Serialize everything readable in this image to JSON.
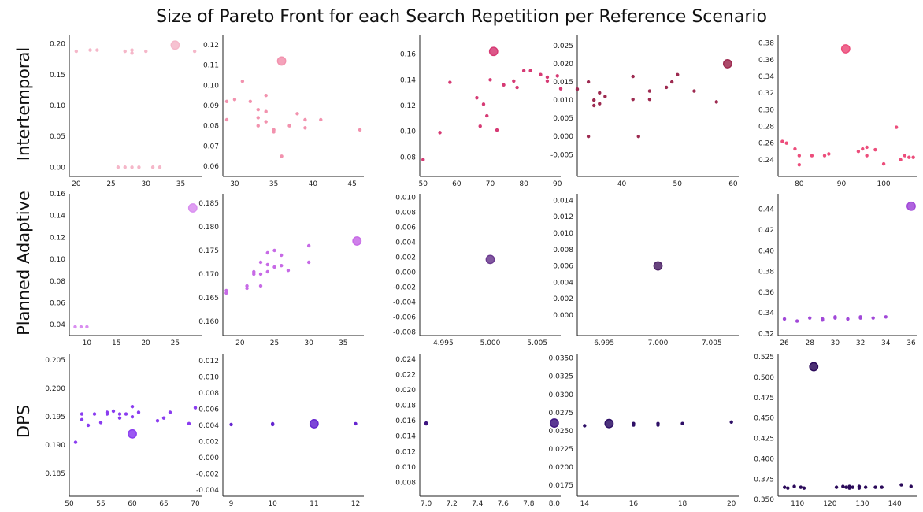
{
  "title": "Size of Pareto Front for each Search Repetition per Reference Scenario",
  "row_labels": [
    "Intertemporal",
    "Planned Adaptive",
    "DPS"
  ],
  "chart_data": [
    {
      "type": "scatter",
      "row": 0,
      "col": 0,
      "color": "#f5b7c9",
      "xlim": [
        19,
        38
      ],
      "ylim": [
        -0.015,
        0.215
      ],
      "xticks": [
        "20",
        "25",
        "30",
        "35"
      ],
      "yticks": [
        "0.00",
        "0.05",
        "0.10",
        "0.15",
        "0.20"
      ],
      "points": [
        [
          20,
          0.188
        ],
        [
          22,
          0.19
        ],
        [
          23,
          0.19
        ],
        [
          27,
          0.188
        ],
        [
          28,
          0.19
        ],
        [
          28,
          0.185
        ],
        [
          30,
          0.188
        ],
        [
          37,
          0.188
        ],
        [
          26,
          0.0
        ],
        [
          27,
          0.0
        ],
        [
          28,
          0.0
        ],
        [
          29,
          0.0
        ],
        [
          31,
          0.0
        ],
        [
          32,
          0.0
        ]
      ],
      "highlight": [
        34.2,
        0.198
      ]
    },
    {
      "type": "scatter",
      "row": 0,
      "col": 1,
      "color": "#f292ae",
      "xlim": [
        28.5,
        46.5
      ],
      "ylim": [
        0.055,
        0.125
      ],
      "xticks": [
        "30",
        "35",
        "40",
        "45"
      ],
      "yticks": [
        "0.06",
        "0.07",
        "0.08",
        "0.09",
        "0.10",
        "0.11",
        "0.12"
      ],
      "points": [
        [
          29,
          0.092
        ],
        [
          29,
          0.083
        ],
        [
          30,
          0.093
        ],
        [
          31,
          0.102
        ],
        [
          32,
          0.092
        ],
        [
          33,
          0.088
        ],
        [
          33,
          0.084
        ],
        [
          33,
          0.08
        ],
        [
          34,
          0.095
        ],
        [
          34,
          0.087
        ],
        [
          34,
          0.082
        ],
        [
          35,
          0.078
        ],
        [
          35,
          0.077
        ],
        [
          36,
          0.065
        ],
        [
          37,
          0.08
        ],
        [
          38,
          0.086
        ],
        [
          39,
          0.083
        ],
        [
          39,
          0.079
        ],
        [
          41,
          0.083
        ],
        [
          46,
          0.078
        ]
      ],
      "highlight": [
        36,
        0.112
      ]
    },
    {
      "type": "scatter",
      "row": 0,
      "col": 2,
      "color": "#d63a74",
      "xlim": [
        49,
        91
      ],
      "ylim": [
        0.065,
        0.175
      ],
      "xticks": [
        "50",
        "60",
        "70",
        "80",
        "90"
      ],
      "yticks": [
        "0.08",
        "0.10",
        "0.12",
        "0.14",
        "0.16"
      ],
      "points": [
        [
          50,
          0.078
        ],
        [
          55,
          0.099
        ],
        [
          58,
          0.138
        ],
        [
          66,
          0.126
        ],
        [
          67,
          0.104
        ],
        [
          68,
          0.121
        ],
        [
          69,
          0.112
        ],
        [
          70,
          0.14
        ],
        [
          72,
          0.101
        ],
        [
          74,
          0.136
        ],
        [
          77,
          0.139
        ],
        [
          78,
          0.134
        ],
        [
          80,
          0.147
        ],
        [
          82,
          0.147
        ],
        [
          85,
          0.144
        ],
        [
          87,
          0.142
        ],
        [
          87,
          0.139
        ],
        [
          90,
          0.143
        ],
        [
          91,
          0.133
        ]
      ],
      "highlight": [
        71,
        0.162
      ]
    },
    {
      "type": "scatter",
      "row": 0,
      "col": 3,
      "color": "#9d2a50",
      "xlim": [
        32,
        61
      ],
      "ylim": [
        -0.011,
        0.028
      ],
      "xticks": [
        "40",
        "50",
        "60"
      ],
      "yticks": [
        "-0.005",
        "0.000",
        "0.005",
        "0.010",
        "0.015",
        "0.020",
        "0.025"
      ],
      "points": [
        [
          32,
          0.013
        ],
        [
          34,
          0.015
        ],
        [
          34,
          0.0
        ],
        [
          35,
          0.01
        ],
        [
          35,
          0.0085
        ],
        [
          36,
          0.009
        ],
        [
          36,
          0.012
        ],
        [
          37,
          0.011
        ],
        [
          42,
          0.0165
        ],
        [
          42,
          0.0102
        ],
        [
          43,
          0.0
        ],
        [
          45,
          0.0125
        ],
        [
          45,
          0.0102
        ],
        [
          48,
          0.0135
        ],
        [
          49,
          0.015
        ],
        [
          50,
          0.017
        ],
        [
          53,
          0.0125
        ],
        [
          57,
          0.0095
        ]
      ],
      "highlight": [
        59,
        0.02
      ]
    },
    {
      "type": "scatter",
      "row": 0,
      "col": 4,
      "color": "#ec4d7b",
      "xlim": [
        75,
        108
      ],
      "ylim": [
        0.22,
        0.39
      ],
      "xticks": [
        "80",
        "90",
        "100"
      ],
      "yticks": [
        "0.24",
        "0.26",
        "0.28",
        "0.30",
        "0.32",
        "0.34",
        "0.36",
        "0.38"
      ],
      "points": [
        [
          76,
          0.262
        ],
        [
          77,
          0.26
        ],
        [
          79,
          0.253
        ],
        [
          80,
          0.245
        ],
        [
          80,
          0.234
        ],
        [
          83,
          0.245
        ],
        [
          86,
          0.245
        ],
        [
          87,
          0.247
        ],
        [
          94,
          0.25
        ],
        [
          95,
          0.253
        ],
        [
          96,
          0.255
        ],
        [
          96,
          0.245
        ],
        [
          98,
          0.252
        ],
        [
          100,
          0.235
        ],
        [
          103,
          0.279
        ],
        [
          104,
          0.24
        ],
        [
          105,
          0.245
        ],
        [
          106,
          0.243
        ],
        [
          107,
          0.243
        ]
      ],
      "highlight": [
        91,
        0.373
      ]
    },
    {
      "type": "scatter",
      "row": 1,
      "col": 0,
      "color": "#d98ef0",
      "xlim": [
        7,
        29.5
      ],
      "ylim": [
        0.03,
        0.16
      ],
      "xticks": [
        "10",
        "15",
        "20",
        "25"
      ],
      "yticks": [
        "0.04",
        "0.06",
        "0.08",
        "0.10",
        "0.12",
        "0.14",
        "0.16"
      ],
      "points": [
        [
          8,
          0.038
        ],
        [
          9,
          0.038
        ],
        [
          10,
          0.038
        ]
      ],
      "highlight": [
        28,
        0.147
      ]
    },
    {
      "type": "scatter",
      "row": 1,
      "col": 1,
      "color": "#c76ae6",
      "xlim": [
        17.5,
        38
      ],
      "ylim": [
        0.157,
        0.187
      ],
      "xticks": [
        "20",
        "25",
        "30",
        "35"
      ],
      "yticks": [
        "0.160",
        "0.165",
        "0.170",
        "0.175",
        "0.180",
        "0.185"
      ],
      "points": [
        [
          18,
          0.1665
        ],
        [
          18,
          0.166
        ],
        [
          21,
          0.167
        ],
        [
          21,
          0.1675
        ],
        [
          22,
          0.17
        ],
        [
          22,
          0.1705
        ],
        [
          23,
          0.1725
        ],
        [
          23,
          0.1675
        ],
        [
          23,
          0.17
        ],
        [
          24,
          0.1745
        ],
        [
          24,
          0.172
        ],
        [
          24,
          0.1705
        ],
        [
          25,
          0.175
        ],
        [
          25,
          0.1715
        ],
        [
          26,
          0.174
        ],
        [
          26,
          0.1718
        ],
        [
          27,
          0.1708
        ],
        [
          30,
          0.176
        ],
        [
          30,
          0.1725
        ]
      ],
      "highlight": [
        37,
        0.177
      ]
    },
    {
      "type": "scatter",
      "row": 1,
      "col": 2,
      "color": "#6b3a8f",
      "xlim": [
        4.9925,
        5.0075
      ],
      "ylim": [
        -0.0085,
        0.0105
      ],
      "xticks": [
        "4.995",
        "5.000",
        "5.005"
      ],
      "yticks": [
        "-0.008",
        "-0.006",
        "-0.004",
        "-0.002",
        "0.000",
        "0.002",
        "0.004",
        "0.006",
        "0.008",
        "0.010"
      ],
      "points": [],
      "highlight": [
        5.0,
        0.0017
      ]
    },
    {
      "type": "scatter",
      "row": 1,
      "col": 3,
      "color": "#4e2367",
      "xlim": [
        6.9925,
        7.0075
      ],
      "ylim": [
        -0.0025,
        0.0148
      ],
      "xticks": [
        "6.995",
        "7.000",
        "7.005"
      ],
      "yticks": [
        "0.000",
        "0.002",
        "0.004",
        "0.006",
        "0.008",
        "0.010",
        "0.012",
        "0.014"
      ],
      "points": [],
      "highlight": [
        7.0,
        0.006
      ]
    },
    {
      "type": "scatter",
      "row": 1,
      "col": 4,
      "color": "#a148d8",
      "xlim": [
        25.5,
        36.5
      ],
      "ylim": [
        0.318,
        0.455
      ],
      "xticks": [
        "26",
        "28",
        "30",
        "32",
        "34",
        "36"
      ],
      "yticks": [
        "0.32",
        "0.34",
        "0.36",
        "0.38",
        "0.40",
        "0.42",
        "0.44"
      ],
      "points": [
        [
          26,
          0.334
        ],
        [
          27,
          0.332
        ],
        [
          28,
          0.335
        ],
        [
          29,
          0.334
        ],
        [
          29,
          0.333
        ],
        [
          30,
          0.336
        ],
        [
          30,
          0.335
        ],
        [
          31,
          0.334
        ],
        [
          32,
          0.335
        ],
        [
          32,
          0.336
        ],
        [
          33,
          0.335
        ],
        [
          34,
          0.336
        ]
      ],
      "highlight": [
        36,
        0.443
      ]
    },
    {
      "type": "scatter",
      "row": 2,
      "col": 0,
      "color": "#8a3cf0",
      "xlim": [
        50,
        71
      ],
      "ylim": [
        0.181,
        0.206
      ],
      "xticks": [
        "50",
        "55",
        "60",
        "65",
        "70"
      ],
      "yticks": [
        "0.185",
        "0.190",
        "0.195",
        "0.200",
        "0.205"
      ],
      "points": [
        [
          51,
          0.1905
        ],
        [
          52,
          0.1955
        ],
        [
          52,
          0.1945
        ],
        [
          53,
          0.1935
        ],
        [
          54,
          0.1955
        ],
        [
          55,
          0.194
        ],
        [
          56,
          0.1955
        ],
        [
          56,
          0.1958
        ],
        [
          57,
          0.196
        ],
        [
          58,
          0.1948
        ],
        [
          58,
          0.1955
        ],
        [
          59,
          0.1955
        ],
        [
          60,
          0.1968
        ],
        [
          60,
          0.195
        ],
        [
          61,
          0.1958
        ],
        [
          64,
          0.1943
        ],
        [
          65,
          0.1948
        ],
        [
          66,
          0.1958
        ],
        [
          69,
          0.1938
        ],
        [
          70,
          0.1966
        ]
      ],
      "highlight": [
        60,
        0.192
      ]
    },
    {
      "type": "scatter",
      "row": 2,
      "col": 1,
      "color": "#6525d0",
      "xlim": [
        8.8,
        12.2
      ],
      "ylim": [
        -0.0048,
        0.0128
      ],
      "xticks": [
        "9",
        "10",
        "11",
        "12"
      ],
      "yticks": [
        "-0.004",
        "-0.002",
        "0.000",
        "0.002",
        "0.004",
        "0.006",
        "0.008",
        "0.010",
        "0.012"
      ],
      "points": [
        [
          9,
          0.0041
        ],
        [
          10,
          0.0042
        ],
        [
          10,
          0.0041
        ],
        [
          12,
          0.0042
        ]
      ],
      "highlight": [
        11,
        0.0042
      ]
    },
    {
      "type": "scatter",
      "row": 2,
      "col": 2,
      "color": "#3e1580",
      "xlim": [
        6.95,
        8.05
      ],
      "ylim": [
        0.0062,
        0.0246
      ],
      "xticks": [
        "7.0",
        "7.2",
        "7.4",
        "7.6",
        "7.8",
        "8.0"
      ],
      "yticks": [
        "0.008",
        "0.010",
        "0.012",
        "0.014",
        "0.016",
        "0.018",
        "0.020",
        "0.022",
        "0.024"
      ],
      "points": [
        [
          7.0,
          0.0157
        ],
        [
          7.0,
          0.0156
        ]
      ],
      "highlight": [
        8.0,
        0.0157
      ]
    },
    {
      "type": "scatter",
      "row": 2,
      "col": 3,
      "color": "#2e0f66",
      "xlim": [
        13.7,
        20.3
      ],
      "ylim": [
        0.016,
        0.0355
      ],
      "xticks": [
        "14",
        "16",
        "18",
        "20"
      ],
      "yticks": [
        "0.0175",
        "0.0200",
        "0.0225",
        "0.0250",
        "0.0275",
        "0.0300",
        "0.0325",
        "0.0350"
      ],
      "points": [
        [
          14,
          0.0257
        ],
        [
          16,
          0.026
        ],
        [
          16,
          0.0258
        ],
        [
          17,
          0.026
        ],
        [
          17,
          0.0258
        ],
        [
          18,
          0.026
        ],
        [
          20,
          0.0262
        ]
      ],
      "highlight": [
        15,
        0.026
      ]
    },
    {
      "type": "scatter",
      "row": 2,
      "col": 4,
      "color": "#2b0a5a",
      "xlim": [
        104,
        147
      ],
      "ylim": [
        0.354,
        0.528
      ],
      "xticks": [
        "110",
        "120",
        "130",
        "140"
      ],
      "yticks": [
        "0.350",
        "0.375",
        "0.400",
        "0.425",
        "0.450",
        "0.475",
        "0.500",
        "0.525"
      ],
      "points": [
        [
          106,
          0.365
        ],
        [
          107,
          0.364
        ],
        [
          109,
          0.366
        ],
        [
          111,
          0.365
        ],
        [
          112,
          0.364
        ],
        [
          122,
          0.365
        ],
        [
          124,
          0.366
        ],
        [
          125,
          0.365
        ],
        [
          126,
          0.366
        ],
        [
          126,
          0.364
        ],
        [
          127,
          0.365
        ],
        [
          129,
          0.366
        ],
        [
          129,
          0.364
        ],
        [
          131,
          0.365
        ],
        [
          134,
          0.365
        ],
        [
          136,
          0.365
        ],
        [
          142,
          0.368
        ],
        [
          145,
          0.366
        ]
      ],
      "highlight": [
        115,
        0.513
      ]
    }
  ]
}
